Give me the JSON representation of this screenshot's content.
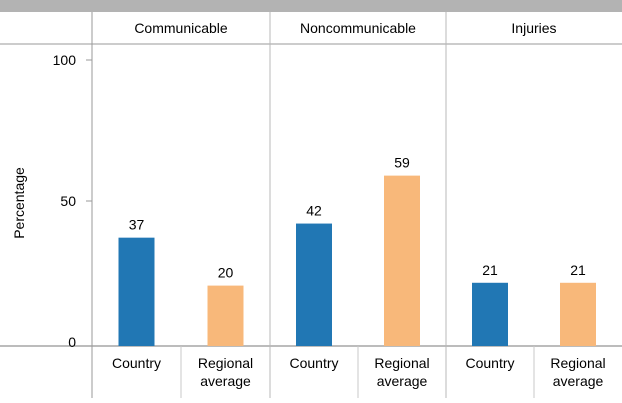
{
  "chart_data": {
    "type": "bar",
    "ylabel": "Percentage",
    "ylim": [
      0,
      100
    ],
    "yticks": [
      0,
      50,
      100
    ],
    "groups": [
      {
        "label": "Communicable",
        "bars": [
          {
            "category": "Country",
            "value": 37
          },
          {
            "category": "Regional average",
            "value": 20
          }
        ]
      },
      {
        "label": "Noncommunicable",
        "bars": [
          {
            "category": "Country",
            "value": 42
          },
          {
            "category": "Regional average",
            "value": 59
          }
        ]
      },
      {
        "label": "Injuries",
        "bars": [
          {
            "category": "Country",
            "value": 21
          },
          {
            "category": "Regional average",
            "value": 21
          }
        ]
      }
    ],
    "category_labels": {
      "Country": [
        "Country"
      ],
      "Regional average": [
        "Regional",
        "average"
      ]
    },
    "colors": {
      "Country": "#2177b4",
      "Regional average": "#f8b87a"
    },
    "grid": false
  }
}
